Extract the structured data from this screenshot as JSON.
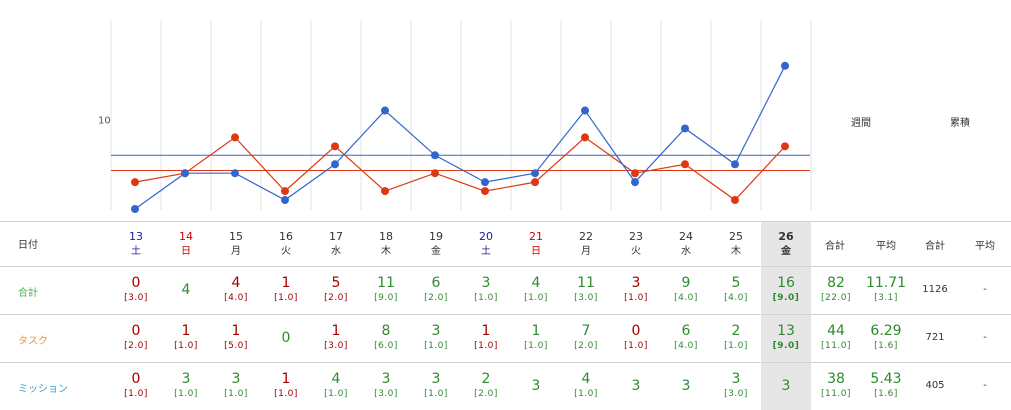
{
  "chart_data": {
    "type": "line",
    "ytick": "10",
    "categories": [
      "13",
      "14",
      "15",
      "16",
      "17",
      "18",
      "19",
      "20",
      "21",
      "22",
      "23",
      "24",
      "25",
      "26"
    ],
    "series": [
      {
        "color": "#3366cc",
        "values": [
          0,
          4,
          4,
          1,
          5,
          11,
          6,
          3,
          4,
          11,
          3,
          9,
          5,
          16
        ],
        "avg_line": 6
      },
      {
        "color": "#dc3912",
        "values": [
          3,
          4,
          8,
          2,
          7,
          2,
          4,
          2,
          3,
          8,
          4,
          5,
          1,
          7
        ],
        "avg_line": 4.3
      }
    ],
    "ylim": [
      0,
      17
    ]
  },
  "side_headers": {
    "weekly": "週間",
    "cumulative": "累積"
  },
  "table": {
    "header": {
      "date_label": "日付",
      "total": "合計",
      "average": "平均",
      "cum_total": "合計",
      "cum_average": "平均"
    },
    "dates": [
      {
        "day": "13",
        "wd": "土",
        "color": "#1a1aa6"
      },
      {
        "day": "14",
        "wd": "日",
        "color": "#cc0000"
      },
      {
        "day": "15",
        "wd": "月",
        "color": "#333333"
      },
      {
        "day": "16",
        "wd": "火",
        "color": "#333333"
      },
      {
        "day": "17",
        "wd": "水",
        "color": "#333333"
      },
      {
        "day": "18",
        "wd": "木",
        "color": "#333333"
      },
      {
        "day": "19",
        "wd": "金",
        "color": "#333333"
      },
      {
        "day": "20",
        "wd": "土",
        "color": "#1a1aa6"
      },
      {
        "day": "21",
        "wd": "日",
        "color": "#cc0000"
      },
      {
        "day": "22",
        "wd": "月",
        "color": "#333333"
      },
      {
        "day": "23",
        "wd": "火",
        "color": "#333333"
      },
      {
        "day": "24",
        "wd": "水",
        "color": "#333333"
      },
      {
        "day": "25",
        "wd": "木",
        "color": "#333333"
      },
      {
        "day": "26",
        "wd": "金",
        "color": "#333333",
        "bold": true
      }
    ],
    "rows": [
      {
        "label": "合計",
        "label_color": "#4caf50",
        "cells": [
          {
            "v": "0",
            "s": "[3.0]",
            "c": "#a00000"
          },
          {
            "v": "4",
            "s": "",
            "c": "#2e8b2e"
          },
          {
            "v": "4",
            "s": "[4.0]",
            "c": "#a00000"
          },
          {
            "v": "1",
            "s": "[1.0]",
            "c": "#a00000"
          },
          {
            "v": "5",
            "s": "[2.0]",
            "c": "#a00000"
          },
          {
            "v": "11",
            "s": "[9.0]",
            "c": "#2e8b2e"
          },
          {
            "v": "6",
            "s": "[2.0]",
            "c": "#2e8b2e"
          },
          {
            "v": "3",
            "s": "[1.0]",
            "c": "#2e8b2e"
          },
          {
            "v": "4",
            "s": "[1.0]",
            "c": "#2e8b2e"
          },
          {
            "v": "11",
            "s": "[3.0]",
            "c": "#2e8b2e"
          },
          {
            "v": "3",
            "s": "[1.0]",
            "c": "#a00000"
          },
          {
            "v": "9",
            "s": "[4.0]",
            "c": "#2e8b2e"
          },
          {
            "v": "5",
            "s": "[4.0]",
            "c": "#2e8b2e"
          },
          {
            "v": "16",
            "s": "[9.0]",
            "c": "#2e8b2e"
          }
        ],
        "total": {
          "v": "82",
          "s": "[22.0]"
        },
        "avg": {
          "v": "11.71",
          "s": "[3.1]"
        },
        "cum_total": "1126",
        "cum_avg": "-"
      },
      {
        "label": "タスク",
        "label_color": "#e69a2e",
        "cells": [
          {
            "v": "0",
            "s": "[2.0]",
            "c": "#a00000"
          },
          {
            "v": "1",
            "s": "[1.0]",
            "c": "#a00000"
          },
          {
            "v": "1",
            "s": "[5.0]",
            "c": "#a00000"
          },
          {
            "v": "0",
            "s": "",
            "c": "#2e8b2e"
          },
          {
            "v": "1",
            "s": "[3.0]",
            "c": "#a00000"
          },
          {
            "v": "8",
            "s": "[6.0]",
            "c": "#2e8b2e"
          },
          {
            "v": "3",
            "s": "[1.0]",
            "c": "#2e8b2e"
          },
          {
            "v": "1",
            "s": "[1.0]",
            "c": "#a00000"
          },
          {
            "v": "1",
            "s": "[1.0]",
            "c": "#2e8b2e"
          },
          {
            "v": "7",
            "s": "[2.0]",
            "c": "#2e8b2e"
          },
          {
            "v": "0",
            "s": "[1.0]",
            "c": "#a00000"
          },
          {
            "v": "6",
            "s": "[4.0]",
            "c": "#2e8b2e"
          },
          {
            "v": "2",
            "s": "[1.0]",
            "c": "#2e8b2e"
          },
          {
            "v": "13",
            "s": "[9.0]",
            "c": "#2e8b2e"
          }
        ],
        "total": {
          "v": "44",
          "s": "[11.0]"
        },
        "avg": {
          "v": "6.29",
          "s": "[1.6]"
        },
        "cum_total": "721",
        "cum_avg": "-"
      },
      {
        "label": "ミッション",
        "label_color": "#29a3d6",
        "cells": [
          {
            "v": "0",
            "s": "[1.0]",
            "c": "#a00000"
          },
          {
            "v": "3",
            "s": "[1.0]",
            "c": "#2e8b2e"
          },
          {
            "v": "3",
            "s": "[1.0]",
            "c": "#2e8b2e"
          },
          {
            "v": "1",
            "s": "[1.0]",
            "c": "#a00000"
          },
          {
            "v": "4",
            "s": "[1.0]",
            "c": "#2e8b2e"
          },
          {
            "v": "3",
            "s": "[3.0]",
            "c": "#2e8b2e"
          },
          {
            "v": "3",
            "s": "[1.0]",
            "c": "#2e8b2e"
          },
          {
            "v": "2",
            "s": "[2.0]",
            "c": "#2e8b2e"
          },
          {
            "v": "3",
            "s": "",
            "c": "#2e8b2e"
          },
          {
            "v": "4",
            "s": "[1.0]",
            "c": "#2e8b2e"
          },
          {
            "v": "3",
            "s": "",
            "c": "#2e8b2e"
          },
          {
            "v": "3",
            "s": "",
            "c": "#2e8b2e"
          },
          {
            "v": "3",
            "s": "[3.0]",
            "c": "#2e8b2e"
          },
          {
            "v": "3",
            "s": "",
            "c": "#2e8b2e"
          }
        ],
        "total": {
          "v": "38",
          "s": "[11.0]"
        },
        "avg": {
          "v": "5.43",
          "s": "[1.6]"
        },
        "cum_total": "405",
        "cum_avg": "-"
      }
    ]
  }
}
